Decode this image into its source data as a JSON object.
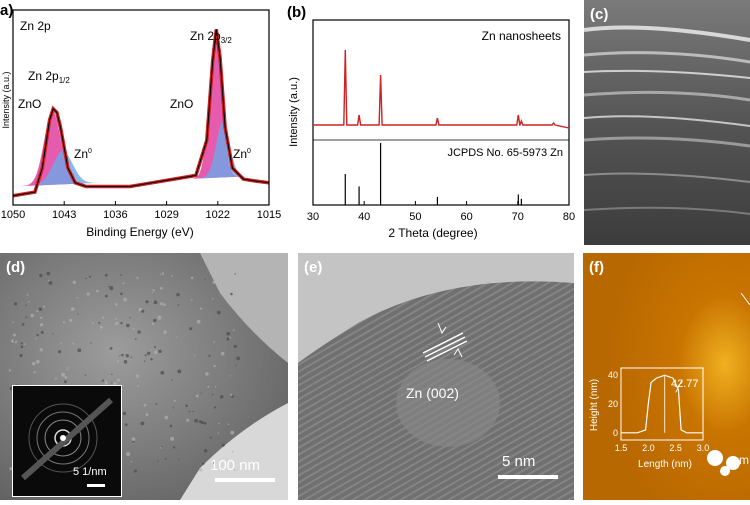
{
  "panels": {
    "a": {
      "label": "a)",
      "title": "Zn 2p",
      "xlabel": "Binding Energy (eV)",
      "ylabel": "Intensity (a.u.)",
      "xticks": [
        "1050",
        "1043",
        "1036",
        "1029",
        "1022",
        "1015"
      ],
      "peak_half": "Zn 2p",
      "peak_half_sub": "1/2",
      "peak_3half": "Zn 2p",
      "peak_3half_sub": "3/2",
      "zno_left": "ZnO",
      "zno_right": "ZnO",
      "zn0_left": "Zn",
      "zn0_right": "Zn",
      "zn0_sup": "0"
    },
    "b": {
      "label": "(b)",
      "legend_top": "Zn nanosheets",
      "legend_ref": "JCPDS No. 65-5973 Zn",
      "xlabel": "2 Theta (degree)",
      "ylabel": "Intensity (a.u.)",
      "xticks": [
        "30",
        "40",
        "50",
        "60",
        "70",
        "80"
      ]
    },
    "c": {
      "label": "(c)"
    },
    "d": {
      "label": "(d)",
      "scale": "100 nm",
      "inset_scale": "5 1/nm"
    },
    "e": {
      "label": "(e)",
      "scale": "5 nm",
      "annotation": "Zn (002)"
    },
    "f": {
      "label": "(f)",
      "inset_ylabel": "Height (nm)",
      "inset_xlabel": "Length (nm)",
      "inset_yticks": [
        "0",
        "20",
        "40"
      ],
      "inset_xticks": [
        "1.5",
        "2.0",
        "2.5",
        "3.0"
      ],
      "inset_value": "42.77",
      "edge_text": "m"
    }
  },
  "colors": {
    "xps_red": "#cc2222",
    "xps_pink": "#e040a0",
    "xps_blue": "#6ea8e8",
    "xrd_red": "#cc2222",
    "afm_orange": "#d48000"
  },
  "chart_data": [
    {
      "type": "line",
      "panel": "a",
      "title": "Zn 2p",
      "xlabel": "Binding Energy (eV)",
      "ylabel": "Intensity (a.u.)",
      "xlim": [
        1050,
        1015
      ],
      "x_reversed": true,
      "series": [
        {
          "name": "",
          "x": [
            1050,
            1047,
            1046,
            1045,
            1044.5,
            1044,
            1043.5,
            1042.5,
            1041.5,
            1040,
            1037,
            1034,
            1031,
            1028,
            1025,
            1023.5,
            1022.7,
            1022.2,
            1021.7,
            1021,
            1020,
            1018.5,
            1017,
            1015
          ],
          "values": [
            0.05,
            0.07,
            0.2,
            0.46,
            0.52,
            0.5,
            0.42,
            0.2,
            0.12,
            0.1,
            0.1,
            0.1,
            0.12,
            0.14,
            0.16,
            0.35,
            0.78,
            0.95,
            0.8,
            0.42,
            0.2,
            0.14,
            0.13,
            0.12
          ]
        }
      ]
    },
    {
      "type": "bar",
      "panel": "b",
      "xlabel": "2 Theta (degree)",
      "ylabel": "Intensity (a.u.)",
      "xlim": [
        30,
        80
      ],
      "series": [
        {
          "name": "Zn nanosheets",
          "x": [
            36.3,
            39.0,
            43.2,
            54.3,
            70.1,
            70.7,
            77.0
          ],
          "values": [
            0.75,
            0.1,
            0.5,
            0.07,
            0.1,
            0.04,
            0.02
          ]
        },
        {
          "name": "JCPDS No. 65-5973 Zn",
          "x": [
            36.3,
            39.0,
            43.2,
            54.3,
            70.1,
            70.7
          ],
          "values": [
            0.5,
            0.3,
            1.0,
            0.13,
            0.17,
            0.1
          ]
        }
      ]
    },
    {
      "type": "line",
      "panel": "f",
      "xlabel": "Length (nm)",
      "ylabel": "Height (nm)",
      "xlim": [
        1.5,
        3.0
      ],
      "ylim": [
        -5,
        45
      ],
      "series": [
        {
          "name": "",
          "x": [
            1.5,
            1.8,
            1.95,
            2.0,
            2.05,
            2.15,
            2.3,
            2.45,
            2.55,
            2.6,
            2.7,
            3.0
          ],
          "values": [
            0,
            0,
            2,
            20,
            35,
            38,
            40,
            38,
            30,
            2,
            0,
            0
          ]
        }
      ]
    }
  ]
}
